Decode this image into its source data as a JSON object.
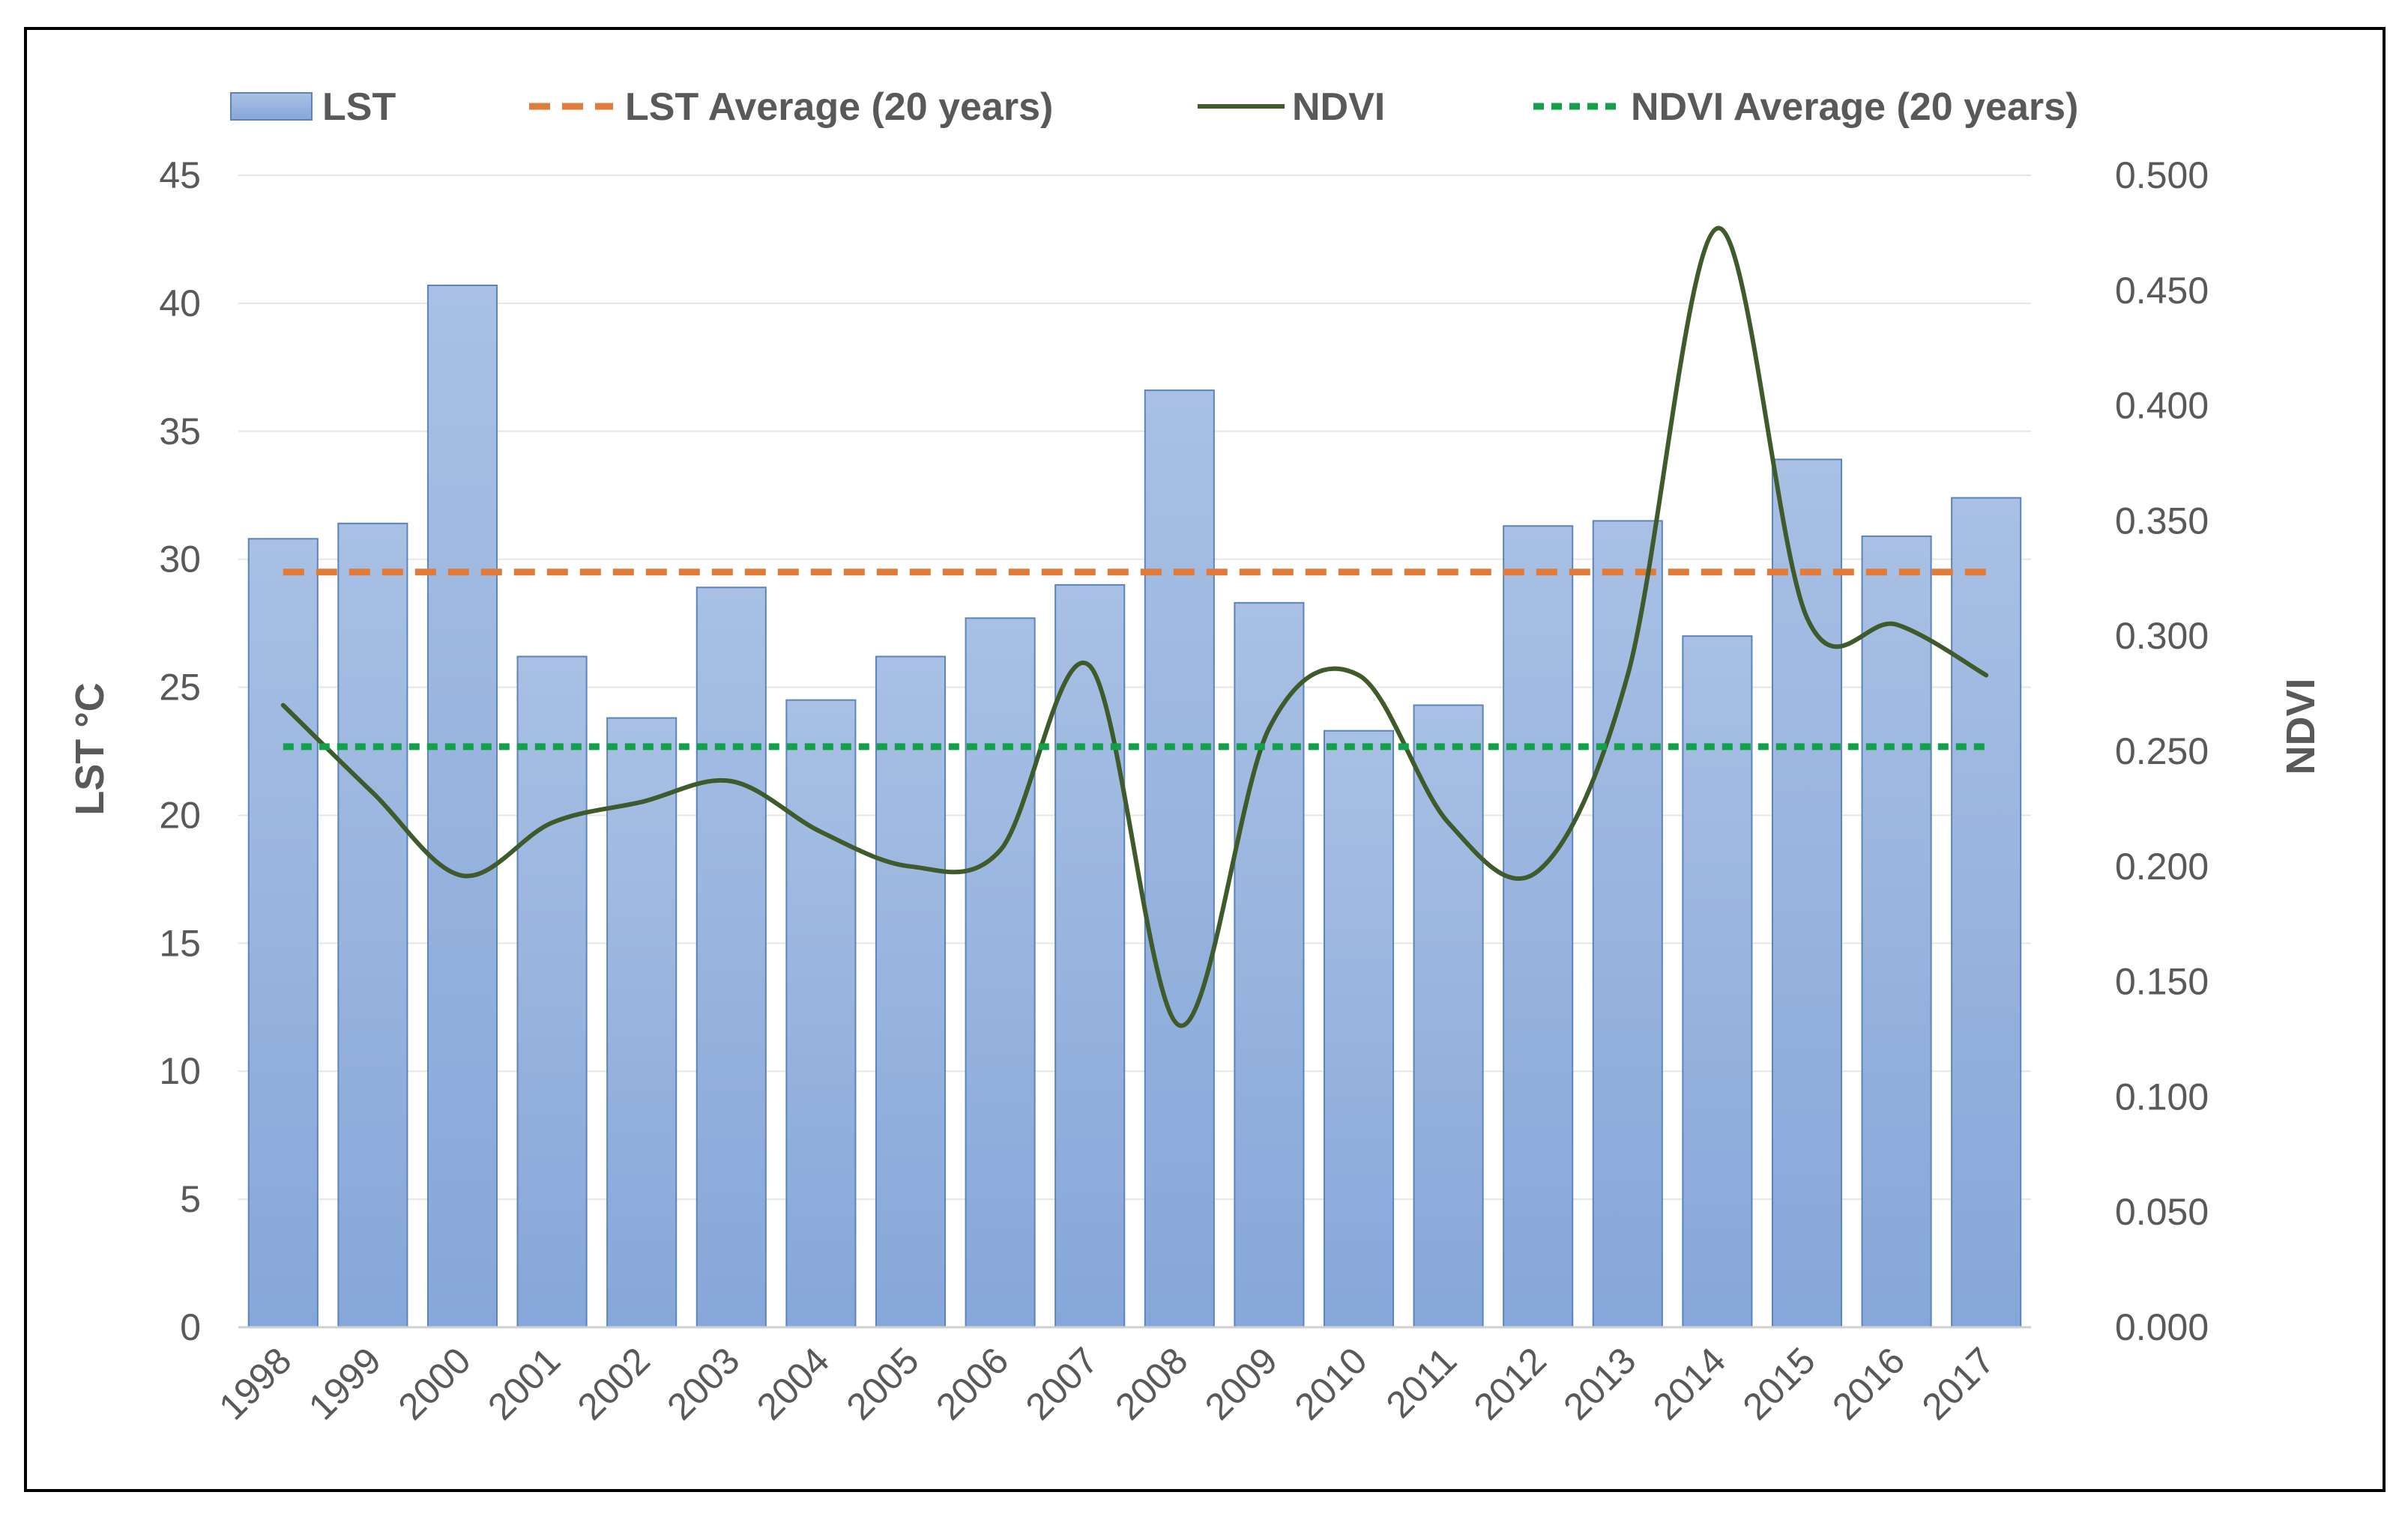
{
  "chart_data": {
    "type": "bar",
    "categories": [
      "1998",
      "1999",
      "2000",
      "2001",
      "2002",
      "2003",
      "2004",
      "2005",
      "2006",
      "2007",
      "2008",
      "2009",
      "2010",
      "2011",
      "2012",
      "2013",
      "2014",
      "2015",
      "2016",
      "2017"
    ],
    "series": [
      {
        "name": "LST",
        "kind": "bar",
        "axis": "left",
        "color": "#97B3DE",
        "values": [
          30.8,
          31.4,
          40.7,
          26.2,
          23.8,
          28.9,
          24.5,
          26.2,
          27.7,
          29.0,
          36.6,
          28.3,
          23.3,
          24.3,
          31.3,
          31.5,
          27.0,
          33.9,
          30.9,
          32.4
        ]
      },
      {
        "name": "LST Average (20 years)",
        "kind": "line-dashed",
        "axis": "left",
        "color": "#E07B39",
        "values": [
          29.5,
          29.5,
          29.5,
          29.5,
          29.5,
          29.5,
          29.5,
          29.5,
          29.5,
          29.5,
          29.5,
          29.5,
          29.5,
          29.5,
          29.5,
          29.5,
          29.5,
          29.5,
          29.5,
          29.5
        ]
      },
      {
        "name": "NDVI",
        "kind": "line",
        "axis": "right",
        "color": "#3F5A2B",
        "values": [
          0.27,
          0.232,
          0.196,
          0.219,
          0.228,
          0.237,
          0.215,
          0.2,
          0.207,
          0.287,
          0.131,
          0.26,
          0.283,
          0.219,
          0.198,
          0.283,
          0.477,
          0.308,
          0.305,
          0.283
        ]
      },
      {
        "name": "NDVI Average (20 years)",
        "kind": "line-dotted",
        "axis": "right",
        "color": "#12A04B",
        "values": [
          0.252,
          0.252,
          0.252,
          0.252,
          0.252,
          0.252,
          0.252,
          0.252,
          0.252,
          0.252,
          0.252,
          0.252,
          0.252,
          0.252,
          0.252,
          0.252,
          0.252,
          0.252,
          0.252,
          0.252
        ]
      }
    ],
    "y_left": {
      "label": "LST °C",
      "ylim": [
        0,
        45
      ],
      "ticks": [
        "0",
        "5",
        "10",
        "15",
        "20",
        "25",
        "30",
        "35",
        "40",
        "45"
      ]
    },
    "y_right": {
      "label": "NDVI",
      "ylim": [
        0,
        0.5
      ],
      "ticks": [
        "0.000",
        "0.050",
        "0.100",
        "0.150",
        "0.200",
        "0.250",
        "0.300",
        "0.350",
        "0.400",
        "0.450",
        "0.500"
      ]
    },
    "legend": {
      "position": "top",
      "items": [
        "LST",
        "LST Average (20 years)",
        "NDVI",
        "NDVI Average (20 years)"
      ]
    },
    "grid": true,
    "colors": {
      "grid": "#E6E6E6",
      "axis_text": "#595959",
      "bar_fill_top": "#A9C0E4",
      "bar_fill_bottom": "#86A7D9",
      "bar_stroke": "#5B83BE",
      "frame": "#000000"
    }
  }
}
